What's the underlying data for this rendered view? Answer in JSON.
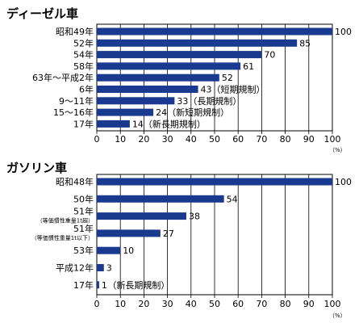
{
  "chart_data": [
    {
      "type": "bar",
      "orientation": "horizontal",
      "title": "ディーゼル車",
      "categories": [
        "昭和49年",
        "52年",
        "54年",
        "58年",
        "63年～平成2年",
        "6年",
        "9～11年",
        "15～16年",
        "17年"
      ],
      "category_notes": [
        "",
        "",
        "",
        "",
        "",
        "",
        "",
        "",
        ""
      ],
      "values": [
        100,
        85,
        70,
        61,
        52,
        43,
        33,
        24,
        14
      ],
      "value_notes": [
        "",
        "",
        "",
        "",
        "",
        "（短期規制）",
        "（長期規制）",
        "（新短期規制）",
        "（新長期規制）"
      ],
      "xlim": [
        0,
        100
      ],
      "xticks": [
        0,
        10,
        20,
        30,
        40,
        50,
        60,
        70,
        80,
        90,
        100
      ],
      "unit": "（%）",
      "grid": true,
      "bar_color": "#1a3a8f"
    },
    {
      "type": "bar",
      "orientation": "horizontal",
      "title": "ガソリン車",
      "categories": [
        "昭和48年",
        "50年",
        "51年",
        "51年",
        "53年",
        "平成12年",
        "17年"
      ],
      "category_notes": [
        "",
        "",
        "（等価慣性重量1t超）",
        "（等価慣性重量1t以下）",
        "",
        "",
        ""
      ],
      "values": [
        100,
        54,
        38,
        27,
        10,
        3,
        1
      ],
      "value_notes": [
        "",
        "",
        "",
        "",
        "",
        "",
        "（新長期規制）"
      ],
      "xlim": [
        0,
        100
      ],
      "xticks": [
        0,
        10,
        20,
        30,
        40,
        50,
        60,
        70,
        80,
        90,
        100
      ],
      "unit": "（%）",
      "grid": true,
      "bar_color": "#1a3a8f"
    }
  ]
}
